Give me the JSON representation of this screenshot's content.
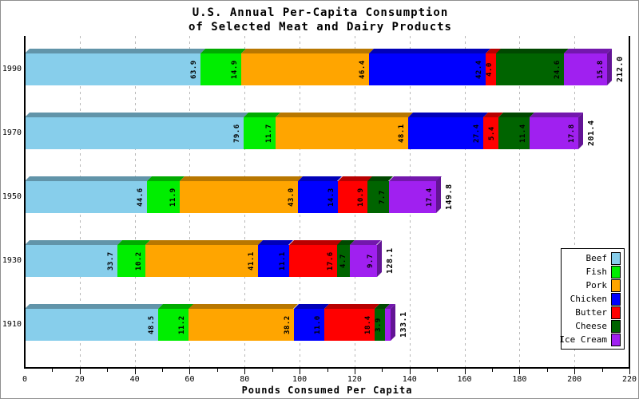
{
  "title": {
    "line1": "U.S. Annual Per-Capita Consumption",
    "line2": "of Selected Meat and Dairy Products"
  },
  "chart_data": {
    "type": "bar",
    "orientation": "horizontal",
    "stacked": true,
    "effect": "3d",
    "categories": [
      "1990",
      "1970",
      "1950",
      "1930",
      "1910"
    ],
    "series": [
      {
        "name": "Beef",
        "color": "#87CEEB",
        "values": [
          63.9,
          79.6,
          44.6,
          33.7,
          48.5
        ]
      },
      {
        "name": "Fish",
        "color": "#00EE00",
        "values": [
          14.9,
          11.7,
          11.9,
          10.2,
          11.2
        ]
      },
      {
        "name": "Pork",
        "color": "#FFA500",
        "values": [
          46.4,
          48.1,
          43.0,
          41.1,
          38.2
        ]
      },
      {
        "name": "Chicken",
        "color": "#0000FF",
        "values": [
          42.4,
          27.4,
          14.3,
          11.1,
          11.0
        ]
      },
      {
        "name": "Butter",
        "color": "#FF0000",
        "values": [
          4.0,
          5.4,
          10.9,
          17.6,
          18.4
        ]
      },
      {
        "name": "Cheese",
        "color": "#006400",
        "values": [
          24.6,
          11.4,
          7.7,
          4.7,
          3.9
        ]
      },
      {
        "name": "Ice Cream",
        "color": "#A020F0",
        "values": [
          15.8,
          17.8,
          17.4,
          9.7,
          1.9
        ]
      }
    ],
    "totals": [
      212.0,
      201.4,
      149.8,
      128.1,
      133.1
    ],
    "xlabel": "Pounds Consumed Per Capita",
    "xticks": [
      0,
      20,
      40,
      60,
      80,
      100,
      120,
      140,
      160,
      180,
      200,
      220
    ],
    "minor_tick_step": 10,
    "xlim": [
      0,
      220
    ],
    "grid": true,
    "gridline_style": "dashed",
    "legend_position": "right",
    "value_label_color": "#000000",
    "value_labels_rotated": true
  }
}
